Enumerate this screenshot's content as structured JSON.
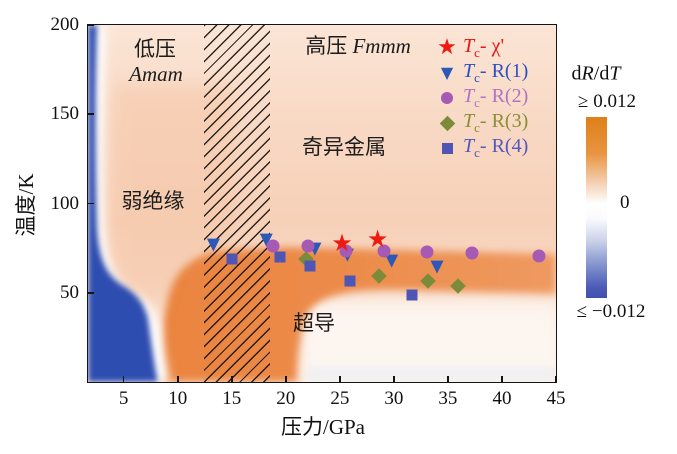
{
  "figure_title": "La3Ni2O7-type pressure-temperature phase diagram",
  "axes": {
    "x_label": "压力/GPa",
    "y_label": "温度/K",
    "x_ticks": [
      5,
      10,
      15,
      20,
      25,
      30,
      35,
      40,
      45
    ],
    "y_ticks": [
      50,
      100,
      150,
      200
    ]
  },
  "chart_data": {
    "type": "heatmap+scatter",
    "xlabel": "压力/GPa",
    "ylabel": "温度/K",
    "xlim": [
      1.7,
      45
    ],
    "ylim": [
      0,
      200
    ],
    "x_ticks": [
      5,
      10,
      15,
      20,
      25,
      30,
      35,
      40,
      45
    ],
    "y_ticks": [
      50,
      100,
      150,
      200
    ],
    "colormap_quantity": "dR/dT",
    "hatch_band": {
      "x_from": 12.4,
      "x_to": 18.5
    },
    "series": [
      {
        "name": "Tc-χ'",
        "marker": "star",
        "glyph": "★",
        "color": "#ee1b10",
        "points": [
          [
            25.2,
            78
          ],
          [
            28.5,
            80
          ]
        ]
      },
      {
        "name": "Tc-R(1)",
        "marker": "triangle",
        "glyph": "▼",
        "color": "#2d58b8",
        "points": [
          [
            13.3,
            77
          ],
          [
            18.2,
            79.5
          ],
          [
            22.7,
            74.5
          ],
          [
            25.7,
            71
          ],
          [
            29.8,
            68
          ],
          [
            34.0,
            64.5
          ]
        ]
      },
      {
        "name": "Tc-R(2)",
        "marker": "circle",
        "glyph": "",
        "color": "#a55ab4",
        "points": [
          [
            18.8,
            76
          ],
          [
            22.1,
            76
          ],
          [
            25.6,
            73.5
          ],
          [
            29.1,
            73.5
          ],
          [
            33.1,
            73
          ],
          [
            37.2,
            72
          ],
          [
            43.4,
            70.5
          ]
        ]
      },
      {
        "name": "Tc-R(3)",
        "marker": "diamond",
        "glyph": "",
        "color": "#7c8b3a",
        "points": [
          [
            21.9,
            69
          ],
          [
            28.6,
            59.5
          ],
          [
            33.2,
            56.5
          ],
          [
            35.9,
            54
          ]
        ]
      },
      {
        "name": "Tc-R(4)",
        "marker": "square",
        "glyph": "",
        "color": "#4e55b4",
        "points": [
          [
            15.0,
            69
          ],
          [
            19.5,
            70
          ],
          [
            22.2,
            65
          ],
          [
            25.9,
            56.5
          ],
          [
            31.7,
            49
          ]
        ]
      }
    ],
    "regions": {
      "low_pressure": {
        "line1": "低压",
        "line2": "Amam"
      },
      "high_pressure": {
        "cjk": "高压",
        "latin": "Fmmm"
      },
      "weak_insulator": "弱绝缘",
      "strange_metal": "奇异金属",
      "superconductor": "超导"
    }
  },
  "legend": {
    "items": [
      {
        "marker": "star",
        "glyph": "★",
        "color": "#ee1b10",
        "text_color": "#e81414",
        "symbol": "T",
        "sub": "c",
        "suffix": "- χ'"
      },
      {
        "marker": "triangle",
        "glyph": "▼",
        "color": "#2d58b8",
        "text_color": "#2b50c2",
        "symbol": "T",
        "sub": "c",
        "suffix": "- R(1)"
      },
      {
        "marker": "circle",
        "glyph": "",
        "color": "#a55ab4",
        "text_color": "#b173c3",
        "symbol": "T",
        "sub": "c",
        "suffix": "- R(2)"
      },
      {
        "marker": "diamond",
        "glyph": "",
        "color": "#7c8b3a",
        "text_color": "#8b8d38",
        "symbol": "T",
        "sub": "c",
        "suffix": "- R(3)"
      },
      {
        "marker": "square",
        "glyph": "",
        "color": "#4e55b4",
        "text_color": "#5357be",
        "symbol": "T",
        "sub": "c",
        "suffix": "- R(4)"
      }
    ]
  },
  "colorbar": {
    "title_parts": {
      "d1": "d",
      "v1": "R",
      "d2": "/d",
      "v2": "T"
    },
    "top_label": "≥ 0.012",
    "zero_label": "0",
    "bottom_label": "≤ −0.012",
    "top_color": "#df7f19",
    "bottom_color": "#4152ae"
  },
  "colors": {
    "positive_dRdT_orange": "#ec8a49",
    "negative_dRdT_blue": "#2d4db0",
    "base_peach": "#f8d5c0",
    "frame": "#141414"
  }
}
